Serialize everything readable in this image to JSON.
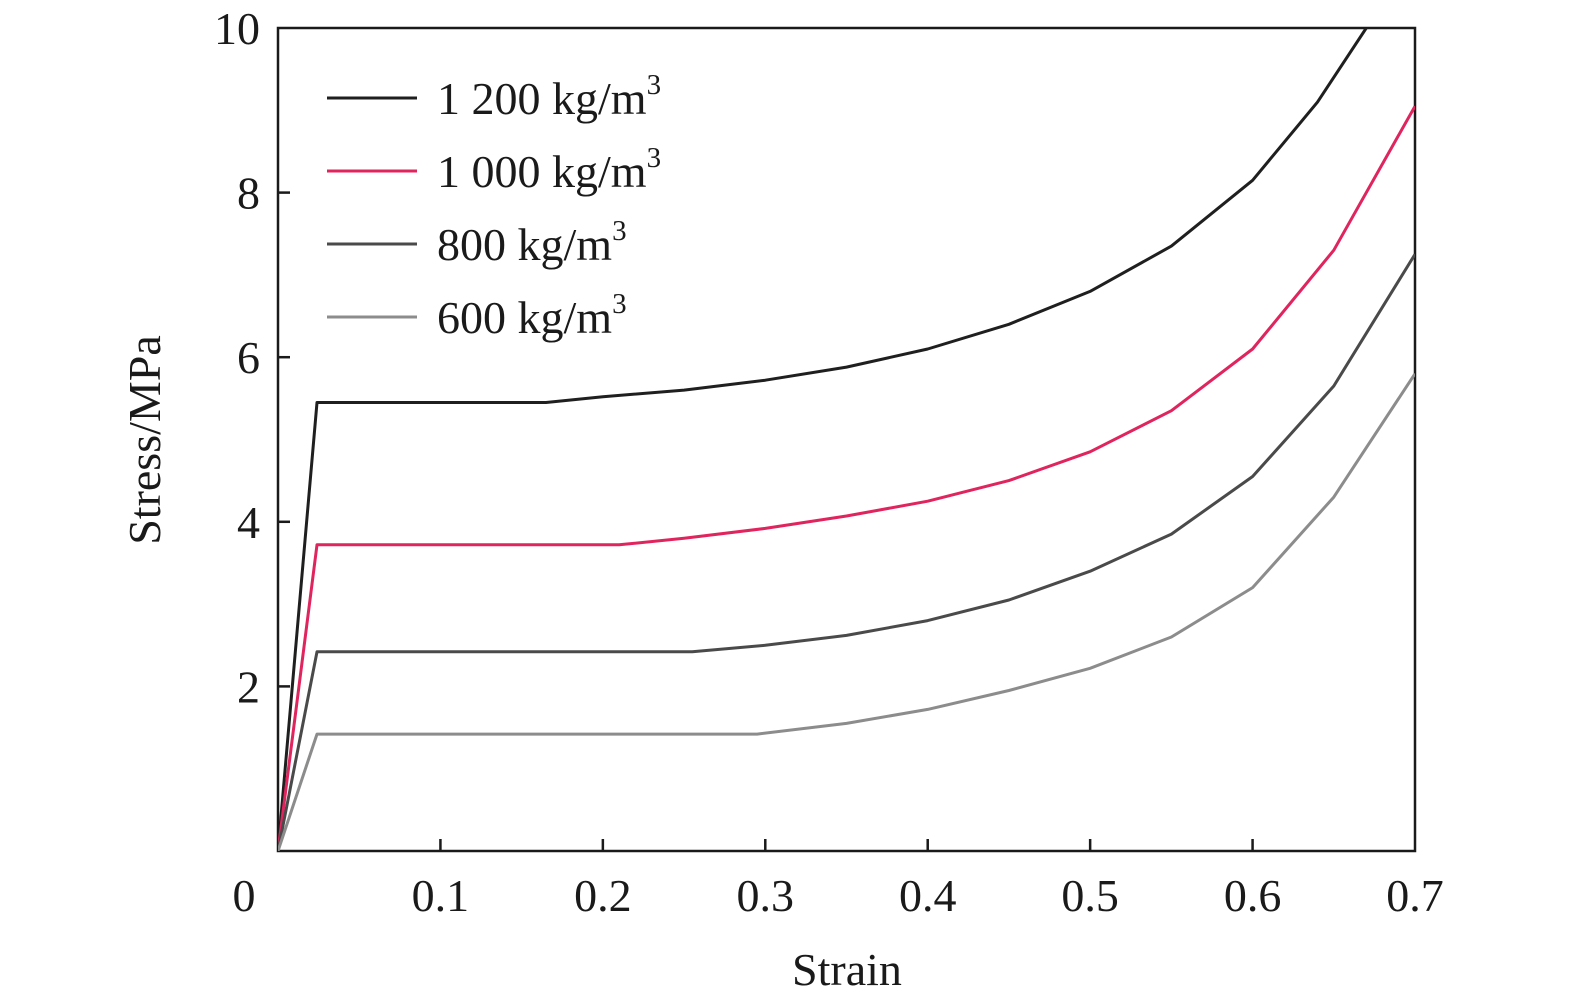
{
  "chart_data": {
    "type": "line",
    "title": "",
    "xlabel": "Strain",
    "ylabel": "Stress/MPa",
    "xlim": [
      0,
      0.7
    ],
    "ylim": [
      0,
      10
    ],
    "x_ticks": [
      0,
      0.1,
      0.2,
      0.3,
      0.4,
      0.5,
      0.6,
      0.7
    ],
    "x_tick_labels": [
      "0",
      "0.1",
      "0.2",
      "0.3",
      "0.4",
      "0.5",
      "0.6",
      "0.7"
    ],
    "y_ticks": [
      2,
      4,
      6,
      8,
      10
    ],
    "y_tick_labels": [
      "2",
      "4",
      "6",
      "8",
      "10"
    ],
    "grid": false,
    "legend_position": "top-left",
    "series": [
      {
        "name": "1 200 kg/m",
        "name_sup": "3",
        "color": "#1f1f1f",
        "points": [
          [
            0,
            0
          ],
          [
            0.024,
            5.45
          ],
          [
            0.165,
            5.45
          ],
          [
            0.2,
            5.52
          ],
          [
            0.25,
            5.6
          ],
          [
            0.3,
            5.72
          ],
          [
            0.35,
            5.88
          ],
          [
            0.4,
            6.1
          ],
          [
            0.45,
            6.4
          ],
          [
            0.5,
            6.8
          ],
          [
            0.55,
            7.35
          ],
          [
            0.6,
            8.15
          ],
          [
            0.64,
            9.1
          ],
          [
            0.67,
            10.0
          ]
        ]
      },
      {
        "name": "1 000 kg/m",
        "name_sup": "3",
        "color": "#e0245e",
        "points": [
          [
            0,
            0
          ],
          [
            0.024,
            3.72
          ],
          [
            0.21,
            3.72
          ],
          [
            0.25,
            3.8
          ],
          [
            0.3,
            3.92
          ],
          [
            0.35,
            4.07
          ],
          [
            0.4,
            4.25
          ],
          [
            0.45,
            4.5
          ],
          [
            0.5,
            4.85
          ],
          [
            0.55,
            5.35
          ],
          [
            0.6,
            6.1
          ],
          [
            0.65,
            7.3
          ],
          [
            0.7,
            9.05
          ]
        ]
      },
      {
        "name": "800 kg/m",
        "name_sup": "3",
        "color": "#4a4a4a",
        "points": [
          [
            0,
            0
          ],
          [
            0.024,
            2.42
          ],
          [
            0.255,
            2.42
          ],
          [
            0.3,
            2.5
          ],
          [
            0.35,
            2.62
          ],
          [
            0.4,
            2.8
          ],
          [
            0.45,
            3.05
          ],
          [
            0.5,
            3.4
          ],
          [
            0.55,
            3.85
          ],
          [
            0.6,
            4.55
          ],
          [
            0.65,
            5.65
          ],
          [
            0.7,
            7.25
          ]
        ]
      },
      {
        "name": "600 kg/m",
        "name_sup": "3",
        "color": "#8c8c8c",
        "points": [
          [
            0,
            0
          ],
          [
            0.024,
            1.42
          ],
          [
            0.295,
            1.42
          ],
          [
            0.35,
            1.55
          ],
          [
            0.4,
            1.72
          ],
          [
            0.45,
            1.95
          ],
          [
            0.5,
            2.22
          ],
          [
            0.55,
            2.6
          ],
          [
            0.6,
            3.2
          ],
          [
            0.65,
            4.3
          ],
          [
            0.7,
            5.8
          ]
        ]
      }
    ]
  }
}
